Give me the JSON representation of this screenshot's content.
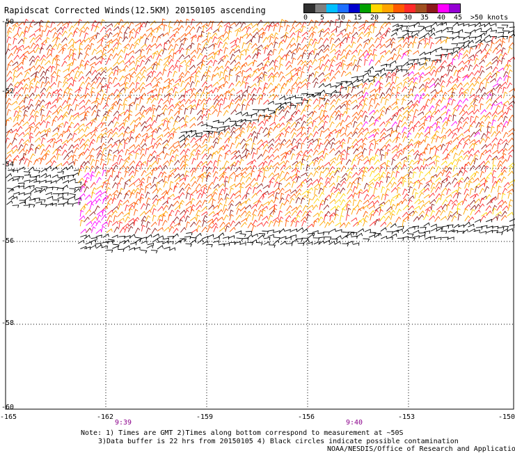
{
  "title": "Rapidscat Corrected Winds(12.5KM) 20150105 ascending",
  "legend": {
    "colors": [
      "#303030",
      "#7f7f7f",
      "#00bfff",
      "#1e6fff",
      "#0000cd",
      "#00a000",
      "#ffd700",
      "#ffa500",
      "#ff5a00",
      "#ff2a2a",
      "#a05020",
      "#8b1a1a",
      "#ff00ff",
      "#9400d3"
    ],
    "labels": [
      "0",
      "5",
      "10",
      "15",
      "20",
      "25",
      "30",
      "35",
      "40",
      "45",
      ">50 knots"
    ]
  },
  "axes": {
    "lat_labels": [
      "-50",
      "-52",
      "-54",
      "-56",
      "-58",
      "-60"
    ],
    "lon_labels": [
      "-165",
      "-162",
      "-159",
      "-156",
      "-153",
      "-150"
    ]
  },
  "times": [
    "9:39",
    "9:40"
  ],
  "notes": [
    "Note: 1) Times are GMT 2)Times along bottom correspond to measurement at ~50S",
    "3)Data buffer is 22 hrs from 20150105 4) Black circles indicate possible contamination",
    "NOAA/NESDIS/Office of Research and Applications"
  ]
}
